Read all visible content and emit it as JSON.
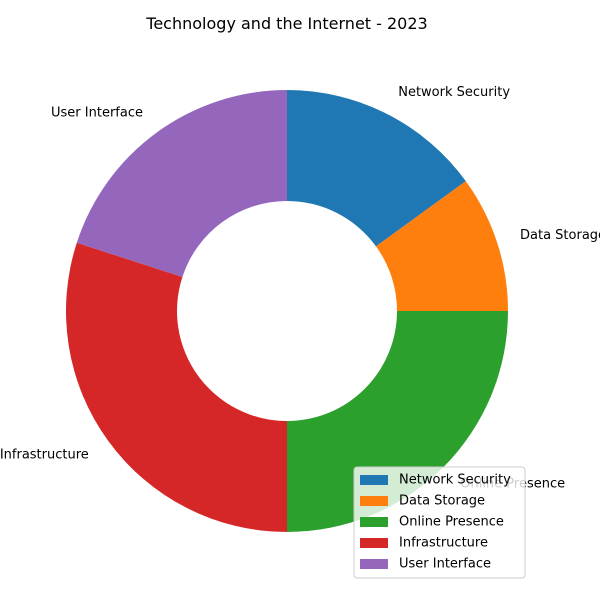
{
  "chart_data": {
    "type": "pie",
    "title": "Technology and the Internet - 2023",
    "categories": [
      "Network Security",
      "Data Storage",
      "Online Presence",
      "Infrastructure",
      "User Interface"
    ],
    "values": [
      15,
      10,
      25,
      30,
      20
    ],
    "colors": [
      "#1f77b4",
      "#ff7f0e",
      "#2ca02c",
      "#d62728",
      "#9467bd"
    ],
    "donut": true,
    "legend": "lower-right"
  }
}
